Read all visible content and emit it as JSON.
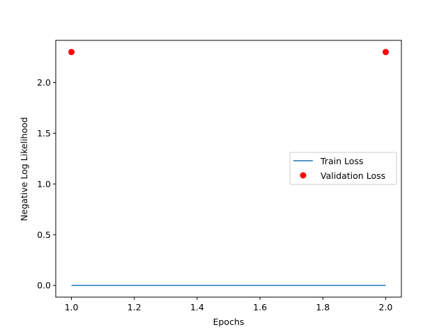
{
  "chart_data": {
    "type": "line",
    "title": "",
    "xlabel": "Epochs",
    "ylabel": "Negative Log Likelihood",
    "xlim": [
      0.95,
      2.05
    ],
    "ylim": [
      -0.115,
      2.415
    ],
    "xticks": [
      1.0,
      1.2,
      1.4,
      1.6,
      1.8,
      2.0
    ],
    "xtick_labels": [
      "1.0",
      "1.2",
      "1.4",
      "1.6",
      "1.8",
      "2.0"
    ],
    "yticks": [
      0.0,
      0.5,
      1.0,
      1.5,
      2.0
    ],
    "ytick_labels": [
      "0.0",
      "0.5",
      "1.0",
      "1.5",
      "2.0"
    ],
    "grid": false,
    "legend_position": "center-right",
    "series": [
      {
        "name": "Train Loss",
        "kind": "line",
        "color": "#1f77b4",
        "x": [
          1.0,
          2.0
        ],
        "y": [
          0.0,
          0.0
        ]
      },
      {
        "name": "Validation Loss",
        "kind": "scatter",
        "color": "#ff0000",
        "x": [
          1.0,
          2.0
        ],
        "y": [
          2.3,
          2.3
        ]
      }
    ]
  }
}
